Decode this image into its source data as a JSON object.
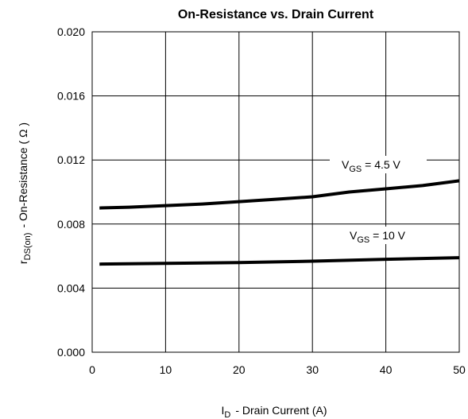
{
  "chart_data": {
    "type": "line",
    "title": "On-Resistance vs. Drain Current",
    "xlabel": {
      "symbol": "I",
      "subscript": "D",
      "text": "-  Drain Current (A)"
    },
    "ylabel": {
      "symbol": "r",
      "subscript": "DS(on)",
      "text": "-  On-Resistance ( Ω )"
    },
    "xlim": [
      0,
      50
    ],
    "ylim": [
      0.0,
      0.02
    ],
    "xticks": [
      "0",
      "10",
      "20",
      "30",
      "40",
      "50"
    ],
    "yticks": [
      "0.000",
      "0.004",
      "0.008",
      "0.012",
      "0.016",
      "0.020"
    ],
    "grid": true,
    "line_color": "#000000",
    "series": [
      {
        "label": {
          "symbol": "V",
          "subscript": "GS",
          "text": " = 4.5 V"
        },
        "x": [
          1,
          5,
          10,
          15,
          20,
          25,
          30,
          35,
          40,
          45,
          50
        ],
        "y": [
          0.009,
          0.00905,
          0.00915,
          0.00925,
          0.0094,
          0.00955,
          0.0097,
          0.01,
          0.0102,
          0.0104,
          0.0107
        ]
      },
      {
        "label": {
          "symbol": "V",
          "subscript": "GS",
          "text": " = 10 V"
        },
        "x": [
          1,
          10,
          20,
          30,
          40,
          50
        ],
        "y": [
          0.0055,
          0.00555,
          0.0056,
          0.00568,
          0.0058,
          0.0059
        ]
      }
    ]
  }
}
